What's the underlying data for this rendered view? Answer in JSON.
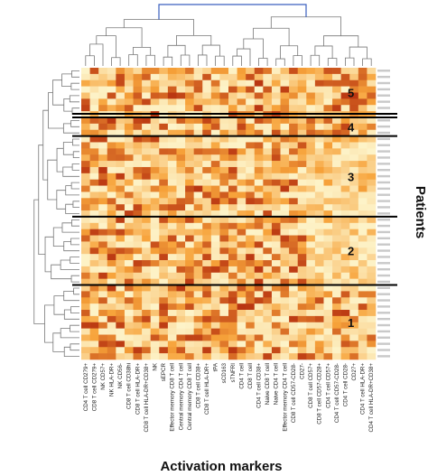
{
  "chart_data": {
    "type": "heatmap",
    "xlabel": "Activation markers",
    "ylabel": "Patients",
    "columns": [
      "CD4 T cell CD279+",
      "CD8 T cell CD279+",
      "NK CD57+",
      "NK HLA-DR+",
      "NK CD56-",
      "CD8 T cell CD38hi",
      "CD8 T cell HLA-DR+",
      "CD8 T cell HLA-DR+CD38+",
      "NK",
      "sEPCR",
      "Effector memory CD8 T cell",
      "Central memory CD4 T cell",
      "Central memory CD8 T cell",
      "CD8 T cell CD38+",
      "CD8 T cell HLA-DR+",
      "tPA",
      "sCD163",
      "sTNFRI",
      "CD4 T cell",
      "CD8 T cell",
      "CD4 T cell CD38+",
      "Naive CD8 T cell",
      "Naive CD4 T cell",
      "Effector memory CD4 T cell",
      "CD8 T cell CD57-CD28-",
      "CD27-",
      "CD8 T cell CD57+",
      "CD8 T cell CD57-CD28+",
      "CD4 T cell CD57+",
      "CD4 T cell CD57-CD28-",
      "CD4 T cell CD28-",
      "CD27+",
      "CD4 T cell HLA-DR+",
      "CD4 T cell HLA-DR+CD38+"
    ],
    "clusters": [
      {
        "label": "5",
        "rows": 8
      },
      {
        "label": "4",
        "rows": 3
      },
      {
        "label": "3",
        "rows": 13
      },
      {
        "label": "2",
        "rows": 11
      },
      {
        "label": "1",
        "rows": 12
      }
    ],
    "color_low": "#fdf3c8",
    "color_mid": "#f7a33a",
    "color_high": "#b2280c",
    "divider_color": "#000000",
    "dendrogram_color": "#777777",
    "dendrogram_root_color": "#3a5fbf"
  }
}
